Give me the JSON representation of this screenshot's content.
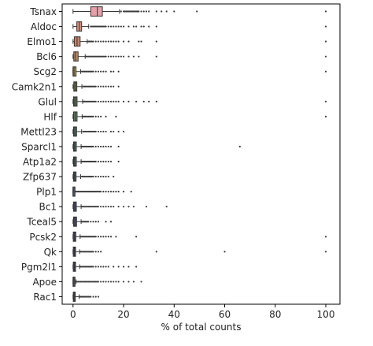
{
  "chart_data": {
    "type": "boxplot",
    "orientation": "horizontal",
    "title": "",
    "xlabel": "% of total counts",
    "ylabel": "",
    "xlim": [
      -4.3,
      105.6
    ],
    "xticks": [
      0,
      20,
      40,
      60,
      80,
      100
    ],
    "grid": false,
    "legend": "none",
    "series": [
      {
        "name": "Tsnax",
        "color": "#e8a0a8",
        "q1": 7.0,
        "median": 9.6,
        "q3": 11.6,
        "whisker_low": 0.0,
        "whisker_high": 18.4,
        "outliers": [
          19,
          20,
          20.5,
          21,
          21.5,
          22,
          22.5,
          23,
          23.5,
          24,
          24.5,
          25,
          25.5,
          26,
          27,
          28,
          29,
          30,
          33,
          35,
          37,
          40,
          49,
          100
        ]
      },
      {
        "name": "Aldoc",
        "color": "#e38c77",
        "q1": 1.5,
        "median": 2.5,
        "q3": 3.4,
        "whisker_low": 0.0,
        "whisker_high": 6.2,
        "outliers": [
          7,
          7.5,
          8,
          8.5,
          9,
          9.5,
          10,
          10.5,
          11,
          11.5,
          12,
          12.5,
          13,
          14,
          15,
          16,
          17,
          18,
          19,
          20,
          22,
          24,
          25,
          27,
          28,
          30,
          33,
          100
        ]
      },
      {
        "name": "Elmo1",
        "color": "#c9856d",
        "q1": 0.5,
        "median": 1.6,
        "q3": 2.8,
        "whisker_low": 0.0,
        "whisker_high": 5.6,
        "outliers": [
          6,
          6.5,
          7,
          7.5,
          8,
          9,
          10,
          11,
          12,
          13,
          14,
          15,
          16,
          17,
          18,
          20,
          22,
          26,
          27,
          33,
          100
        ]
      },
      {
        "name": "Bcl6",
        "color": "#c38d5e",
        "q1": 0.3,
        "median": 1.0,
        "q3": 2.0,
        "whisker_low": 0.0,
        "whisker_high": 4.8,
        "outliers": [
          5,
          5.5,
          6,
          6.5,
          7,
          7.5,
          8,
          8.5,
          9,
          9.5,
          10,
          10.5,
          11,
          11.5,
          12,
          12.5,
          13,
          14,
          15,
          16,
          17,
          18,
          19,
          20,
          22,
          24,
          26,
          33,
          100
        ]
      },
      {
        "name": "Scg2",
        "color": "#b39c44",
        "q1": 0.0,
        "median": 0.4,
        "q3": 1.2,
        "whisker_low": 0.0,
        "whisker_high": 3.0,
        "outliers": [
          3.5,
          4,
          4.5,
          5,
          5.5,
          6,
          6.5,
          7,
          7.5,
          8,
          9,
          10,
          11,
          12,
          13,
          15,
          16,
          18,
          100
        ]
      },
      {
        "name": "Camk2n1",
        "color": "#6e7a4c",
        "q1": 0.3,
        "median": 0.8,
        "q3": 1.5,
        "whisker_low": 0.0,
        "whisker_high": 3.5,
        "outliers": [
          4,
          4.5,
          5,
          5.5,
          6,
          6.5,
          7,
          7.5,
          8,
          8.5,
          9,
          10,
          11,
          12,
          13,
          14,
          15,
          16,
          18
        ]
      },
      {
        "name": "Glul",
        "color": "#566f50",
        "q1": 0.2,
        "median": 0.7,
        "q3": 1.6,
        "whisker_low": 0.0,
        "whisker_high": 3.8,
        "outliers": [
          4,
          4.5,
          5,
          5.5,
          6,
          6.5,
          7,
          7.5,
          8,
          8.5,
          9,
          10,
          11,
          12,
          13,
          14,
          15,
          16,
          17,
          18,
          20,
          22,
          25,
          28,
          30,
          33,
          100
        ]
      },
      {
        "name": "Hlf",
        "color": "#5a8060",
        "q1": 0.2,
        "median": 0.8,
        "q3": 1.6,
        "whisker_low": 0.0,
        "whisker_high": 3.6,
        "outliers": [
          4,
          4.5,
          5,
          5.5,
          6,
          6.5,
          7,
          7.5,
          8,
          9,
          10,
          11,
          13,
          17,
          100
        ]
      },
      {
        "name": "Mettl23",
        "color": "#4e6f5c",
        "q1": 0.2,
        "median": 0.7,
        "q3": 1.4,
        "whisker_low": 0.0,
        "whisker_high": 3.4,
        "outliers": [
          4,
          4.5,
          5,
          5.5,
          6,
          6.5,
          7,
          7.5,
          8,
          8.5,
          9,
          10,
          11,
          12,
          13,
          15,
          16,
          18,
          20
        ]
      },
      {
        "name": "Sparcl1",
        "color": "#4e6a62",
        "q1": 0.2,
        "median": 0.6,
        "q3": 1.3,
        "whisker_low": 0.0,
        "whisker_high": 3.2,
        "outliers": [
          3.5,
          4,
          4.5,
          5,
          5.5,
          6,
          6.5,
          7,
          7.5,
          8,
          9,
          10,
          11,
          12,
          13,
          14,
          15,
          18,
          66
        ]
      },
      {
        "name": "Atp1a2",
        "color": "#4c6568",
        "q1": 0.2,
        "median": 0.6,
        "q3": 1.3,
        "whisker_low": 0.0,
        "whisker_high": 3.2,
        "outliers": [
          3.5,
          4,
          4.5,
          5,
          5.5,
          6,
          6.5,
          7,
          7.5,
          8,
          8.5,
          9,
          10,
          11,
          12,
          13,
          14,
          15,
          18
        ]
      },
      {
        "name": "Zfp637",
        "color": "#4b5e68",
        "q1": 0.2,
        "median": 0.6,
        "q3": 1.2,
        "whisker_low": 0.0,
        "whisker_high": 3.0,
        "outliers": [
          3.5,
          4,
          4.5,
          5,
          5.5,
          6,
          6.5,
          7,
          7.5,
          8,
          9,
          10,
          11,
          12,
          13,
          14,
          16
        ]
      },
      {
        "name": "Plp1",
        "color": "#4a586a",
        "q1": 0.0,
        "median": 0.0,
        "q3": 0.3,
        "whisker_low": 0.0,
        "whisker_high": 0.7,
        "outliers": [
          1,
          1.5,
          2,
          2.5,
          3,
          3.5,
          4,
          4.5,
          5,
          5.5,
          6,
          6.5,
          7,
          7.5,
          8,
          8.5,
          9,
          9.5,
          10,
          10.5,
          11,
          12,
          13,
          14,
          15,
          16,
          17,
          18,
          20,
          23
        ]
      },
      {
        "name": "Bc1",
        "color": "#485270",
        "q1": 0.2,
        "median": 0.7,
        "q3": 1.3,
        "whisker_low": 0.0,
        "whisker_high": 3.2,
        "outliers": [
          3.5,
          4,
          4.5,
          5,
          5.5,
          6,
          6.5,
          7,
          7.5,
          8,
          8.5,
          9,
          9.5,
          10,
          11,
          12,
          13,
          14,
          15,
          16,
          18,
          20,
          22,
          24,
          29,
          37
        ]
      },
      {
        "name": "Tceal5",
        "color": "#4a4e70",
        "q1": 0.2,
        "median": 0.7,
        "q3": 1.4,
        "whisker_low": 0.0,
        "whisker_high": 3.2,
        "outliers": [
          3.5,
          4,
          4.5,
          5,
          5.5,
          6,
          7,
          8,
          9,
          10,
          13,
          15
        ]
      },
      {
        "name": "Pcsk2",
        "color": "#4e4a70",
        "q1": 0.1,
        "median": 0.5,
        "q3": 1.1,
        "whisker_low": 0.0,
        "whisker_high": 2.8,
        "outliers": [
          3,
          3.5,
          4,
          4.5,
          5,
          5.5,
          6,
          6.5,
          7,
          7.5,
          8,
          8.5,
          9,
          10,
          11,
          12,
          13,
          14,
          15,
          17,
          25,
          100
        ]
      },
      {
        "name": "Qk",
        "color": "#4c4a66",
        "q1": 0.1,
        "median": 0.5,
        "q3": 1.0,
        "whisker_low": 0.0,
        "whisker_high": 2.6,
        "outliers": [
          3,
          3.5,
          4,
          4.5,
          5,
          5.5,
          6,
          6.5,
          7,
          7.5,
          8,
          9,
          10,
          11,
          33,
          60,
          100
        ]
      },
      {
        "name": "Pgm2l1",
        "color": "#4a4a5e",
        "q1": 0.1,
        "median": 0.5,
        "q3": 1.0,
        "whisker_low": 0.0,
        "whisker_high": 2.6,
        "outliers": [
          3,
          3.5,
          4,
          4.5,
          5,
          5.5,
          6,
          6.5,
          7,
          7.5,
          8,
          9,
          10,
          11,
          12,
          13,
          14,
          16,
          18,
          20,
          22,
          25
        ]
      },
      {
        "name": "Apoe",
        "color": "#4b4b58",
        "q1": 0.0,
        "median": 0.1,
        "q3": 0.5,
        "whisker_low": 0.0,
        "whisker_high": 1.2,
        "outliers": [
          1.5,
          2,
          2.5,
          3,
          3.5,
          4,
          4.5,
          5,
          5.5,
          6,
          6.5,
          7,
          7.5,
          8,
          8.5,
          9,
          9.5,
          10,
          11,
          12,
          13,
          14,
          15,
          16,
          17,
          18,
          20,
          22,
          24,
          27
        ]
      },
      {
        "name": "Rac1",
        "color": "#4c4c52",
        "q1": 0.1,
        "median": 0.4,
        "q3": 0.9,
        "whisker_low": 0.0,
        "whisker_high": 2.4,
        "outliers": [
          2.8,
          3.2,
          3.6,
          4,
          4.5,
          5,
          5.5,
          6,
          6.5,
          7,
          8,
          9,
          10
        ]
      }
    ]
  }
}
